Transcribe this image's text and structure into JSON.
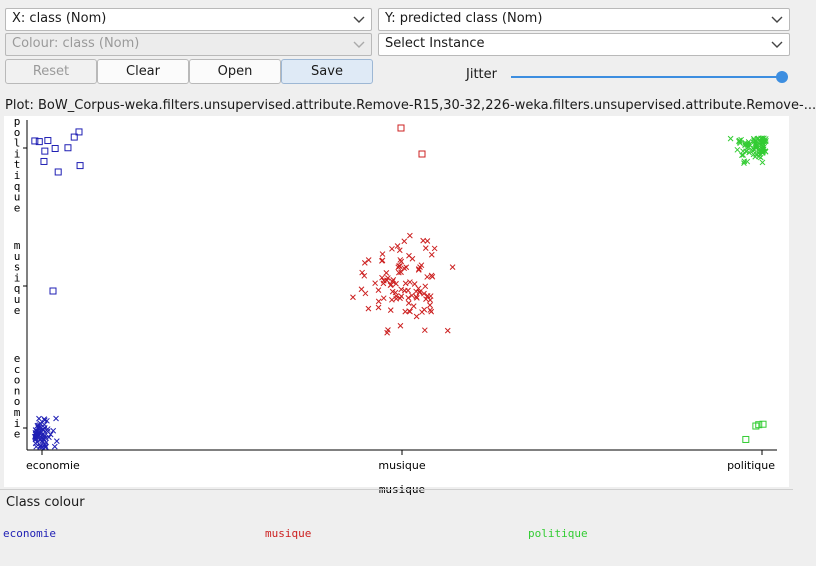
{
  "controls": {
    "x_axis_select": "X: class (Nom)",
    "y_axis_select": "Y: predicted class (Nom)",
    "colour_select": "Colour: class (Nom)",
    "instance_select": "Select Instance",
    "reset_label": "Reset",
    "clear_label": "Clear",
    "open_label": "Open",
    "save_label": "Save",
    "jitter_label": "Jitter",
    "jitter_value": 1.0
  },
  "plot_title": "Plot: BoW_Corpus-weka.filters.unsupervised.attribute.Remove-R15,30-32,226-weka.filters.unsupervised.attribute.Remove-...",
  "legend": {
    "title": "Class colour",
    "items": [
      {
        "label": "economie",
        "color": "#1f1fb4"
      },
      {
        "label": "musique",
        "color": "#cc2020"
      },
      {
        "label": "politique",
        "color": "#33cc33"
      }
    ]
  },
  "chart_data": {
    "type": "scatter",
    "title": "",
    "xlabel": "musique",
    "ylabel": "",
    "x_categories": [
      "economie",
      "musique",
      "politique"
    ],
    "y_categories": [
      "economie",
      "musique",
      "politique"
    ],
    "jitter": true,
    "markers": {
      "correct": "x",
      "misclassified": "square"
    },
    "series": [
      {
        "actual": "economie",
        "predicted": "economie",
        "count": 60,
        "marker": "x",
        "color": "#1f1fb4"
      },
      {
        "actual": "economie",
        "predicted": "musique",
        "count": 1,
        "marker": "square",
        "color": "#1f1fb4"
      },
      {
        "actual": "economie",
        "predicted": "politique",
        "count": 11,
        "marker": "square",
        "color": "#1f1fb4"
      },
      {
        "actual": "musique",
        "predicted": "musique",
        "count": 100,
        "marker": "x",
        "color": "#cc2020"
      },
      {
        "actual": "musique",
        "predicted": "politique",
        "count": 2,
        "marker": "square",
        "color": "#cc2020"
      },
      {
        "actual": "politique",
        "predicted": "politique",
        "count": 80,
        "marker": "x",
        "color": "#33cc33"
      },
      {
        "actual": "politique",
        "predicted": "economie",
        "count": 4,
        "marker": "square",
        "color": "#33cc33"
      }
    ]
  }
}
